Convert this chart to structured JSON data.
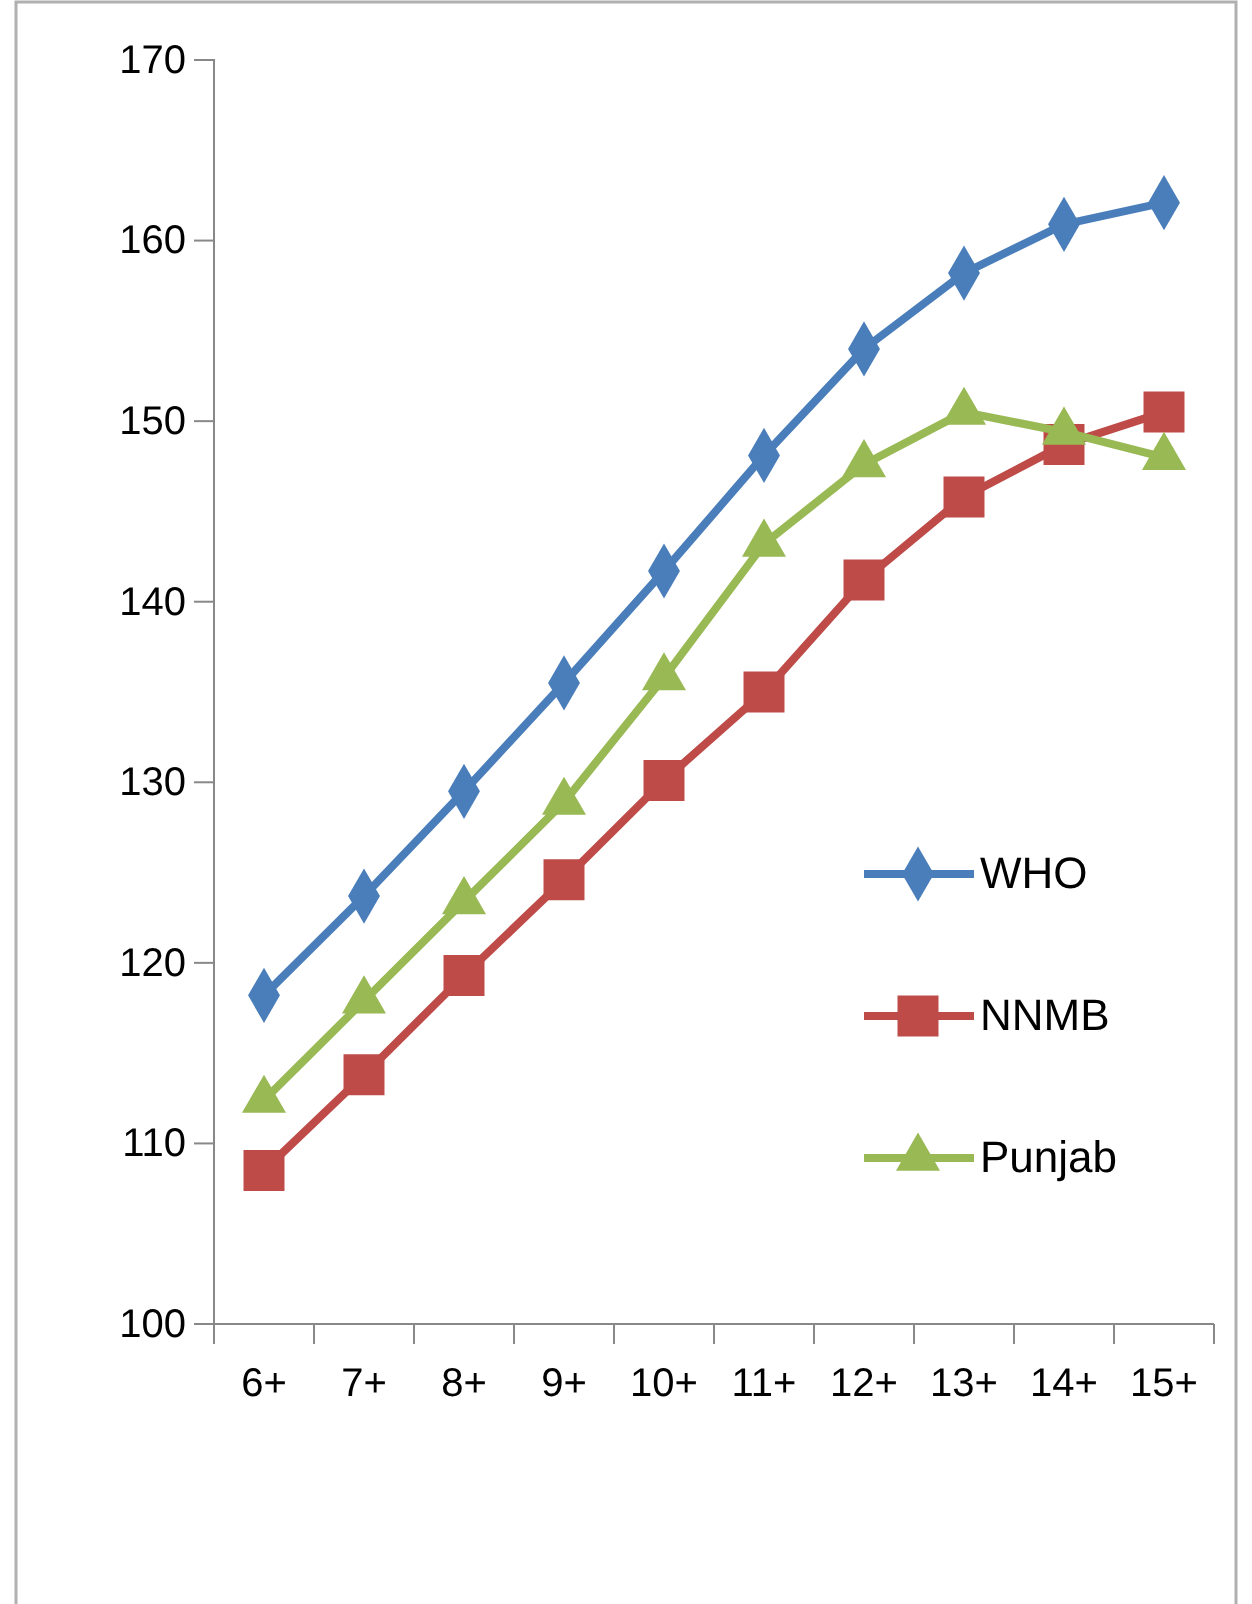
{
  "chart_data": {
    "type": "line",
    "categories": [
      "6+",
      "7+",
      "8+",
      "9+",
      "10+",
      "11+",
      "12+",
      "13+",
      "14+",
      "15+"
    ],
    "series": [
      {
        "name": "WHO",
        "color": "#4a7ebb",
        "marker": "diamond",
        "values": [
          118.2,
          123.7,
          129.5,
          135.5,
          141.7,
          148.1,
          154.0,
          158.2,
          160.9,
          162.1
        ]
      },
      {
        "name": "NNMB",
        "color": "#be4b48",
        "marker": "square",
        "values": [
          108.5,
          113.8,
          119.3,
          124.6,
          130.1,
          135.0,
          141.2,
          145.8,
          148.7,
          150.5
        ]
      },
      {
        "name": "Punjab",
        "color": "#98b954",
        "marker": "triangle",
        "values": [
          112.4,
          117.9,
          123.4,
          128.9,
          135.8,
          143.2,
          147.6,
          150.5,
          149.4,
          148.0
        ]
      }
    ],
    "ylim": [
      100,
      170
    ],
    "yticks": [
      100,
      110,
      120,
      130,
      140,
      150,
      160,
      170
    ],
    "grid": false,
    "legend": "right",
    "line_style": "solid"
  }
}
